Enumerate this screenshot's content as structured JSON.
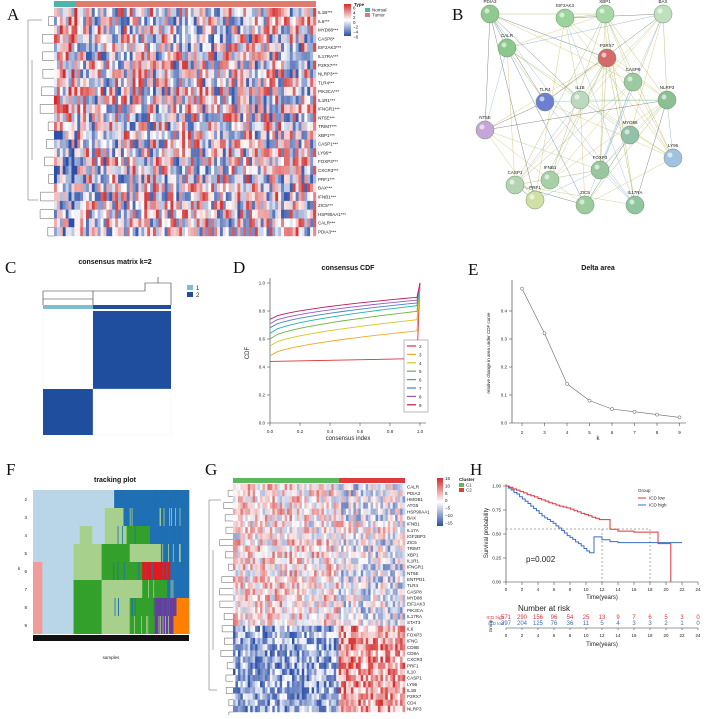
{
  "panels": {
    "A": "A",
    "B": "B",
    "C": "C",
    "D": "D",
    "E": "E",
    "F": "F",
    "G": "G",
    "H": "H"
  },
  "heatmapA": {
    "genes": [
      "IL1B***",
      "IL6***",
      "MYD88***",
      "CASP8*",
      "EIF2AK3***",
      "IL17RA***",
      "P2RX7***",
      "NLRP3***",
      "TLR4***",
      "PIK3CA***",
      "IL1R1***",
      "IFNGR1***",
      "NT5E***",
      "TRIM7***",
      "XBP1***",
      "CASP1***",
      "LY96**",
      "FOXP3***",
      "CXCR3***",
      "PRF1***",
      "BAX***",
      "IFNB1***",
      "ZIC5***",
      "HSP90AA1***",
      "CALR***",
      "PDIA3***"
    ],
    "legend_title": "Type",
    "legend_items": [
      "Normal",
      "Tumor"
    ],
    "scale_ticks": [
      "6",
      "4",
      "2",
      "0",
      "−2",
      "−4",
      "−6"
    ],
    "colors": {
      "normal": "#4db3ad",
      "tumor": "#e07b6e",
      "high": "#d42a2a",
      "low": "#2b4fa8"
    }
  },
  "network": {
    "nodes": [
      "PDIA3",
      "EIF2AK3",
      "XBP1",
      "BAX",
      "CALR",
      "P2RX7",
      "CASP8",
      "NLRP3",
      "NT5E",
      "MYD88",
      "LY96",
      "IL17RA",
      "IFNB1",
      "ZIC5",
      "CASP1",
      "TLR4",
      "IL1B",
      "FOXP3",
      "PRF1"
    ]
  },
  "consensus_matrix": {
    "title": "consensus matrix k=2",
    "legend": [
      "1",
      "2"
    ],
    "colors": {
      "c1": "#7fbcd2",
      "c2": "#1f4e9e"
    }
  },
  "cdf": {
    "title": "consensus CDF",
    "xlabel": "consensus index",
    "ylabel": "CDF",
    "xticks": [
      "0.0",
      "0.2",
      "0.4",
      "0.6",
      "0.8",
      "1.0"
    ],
    "yticks": [
      "0.0",
      "0.2",
      "0.4",
      "0.6",
      "0.8",
      "1.0"
    ],
    "legend": [
      "2",
      "3",
      "4",
      "5",
      "6",
      "7",
      "8",
      "9"
    ],
    "legend_colors": [
      "#d9343f",
      "#f5a623",
      "#d4c81e",
      "#6db33f",
      "#20b2aa",
      "#4b7fd1",
      "#9b59b6",
      "#c2185b"
    ]
  },
  "chart_data": {
    "type": "line",
    "title": "Delta area",
    "xlabel": "k",
    "ylabel": "relative change in area under CDF curve",
    "x": [
      2,
      3,
      4,
      5,
      6,
      7,
      8,
      9
    ],
    "values": [
      0.48,
      0.32,
      0.14,
      0.08,
      0.05,
      0.04,
      0.03,
      0.02
    ],
    "xticks": [
      "2",
      "3",
      "4",
      "5",
      "6",
      "7",
      "8",
      "9"
    ],
    "yticks": [
      "0.0",
      "0.1",
      "0.2",
      "0.3",
      "0.4"
    ],
    "ylim": [
      0,
      0.5
    ]
  },
  "tracking": {
    "title": "tracking plot",
    "xlabel": "samples",
    "ylabel": "k",
    "rows": [
      "2",
      "3",
      "4",
      "5",
      "6",
      "7",
      "8",
      "9"
    ]
  },
  "heatmapG": {
    "genes": [
      "CALR",
      "PDIA3",
      "HMGB1",
      "ATG5",
      "HSP90AA1",
      "BAX",
      "IFNB1",
      "IL17A",
      "IGF2BP3",
      "ZIC5",
      "TRIM7",
      "XBP1",
      "IL1R1",
      "IFNGR1",
      "NT5E",
      "ENTPD1",
      "TLR4",
      "CASP8",
      "MYD88",
      "EIF2AK3",
      "PIK3CA",
      "IL17RA",
      "STAT3",
      "IL6",
      "FOXP3",
      "IFNG",
      "CD8B",
      "CD8A",
      "CXCR3",
      "PRF1",
      "IL10",
      "CASP1",
      "LY96",
      "IL1B",
      "P2RX7",
      "CD4",
      "NLRP3"
    ],
    "legend_title": "Cluster",
    "legend_items": [
      "C1",
      "C2"
    ],
    "scale_ticks": [
      "15",
      "10",
      "5",
      "0",
      "−5",
      "−10",
      "−15"
    ]
  },
  "survival": {
    "ylabel": "Survival probability",
    "xlabel": "Time(years)",
    "pvalue": "p=0.002",
    "legend_title": "Group",
    "legend_items": [
      "ICD low",
      "ICD high"
    ],
    "xticks": [
      "0",
      "2",
      "4",
      "6",
      "8",
      "10",
      "12",
      "14",
      "16",
      "18",
      "20",
      "22",
      "24"
    ],
    "yticks": [
      "0.00",
      "0.25",
      "0.50",
      "0.75",
      "1.00"
    ],
    "risk_title": "Number at risk",
    "risk_group_label": "Group",
    "risk_rows": [
      {
        "label": "ICD high",
        "values": [
          "571",
          "290",
          "156",
          "96",
          "54",
          "25",
          "13",
          "9",
          "7",
          "6",
          "5",
          "3",
          "0"
        ]
      },
      {
        "label": "ICD low",
        "values": [
          "397",
          "204",
          "125",
          "76",
          "36",
          "11",
          "5",
          "4",
          "3",
          "3",
          "2",
          "1",
          "0"
        ]
      }
    ],
    "colors": {
      "low": "#d9343f",
      "high": "#3a6fc1"
    }
  }
}
